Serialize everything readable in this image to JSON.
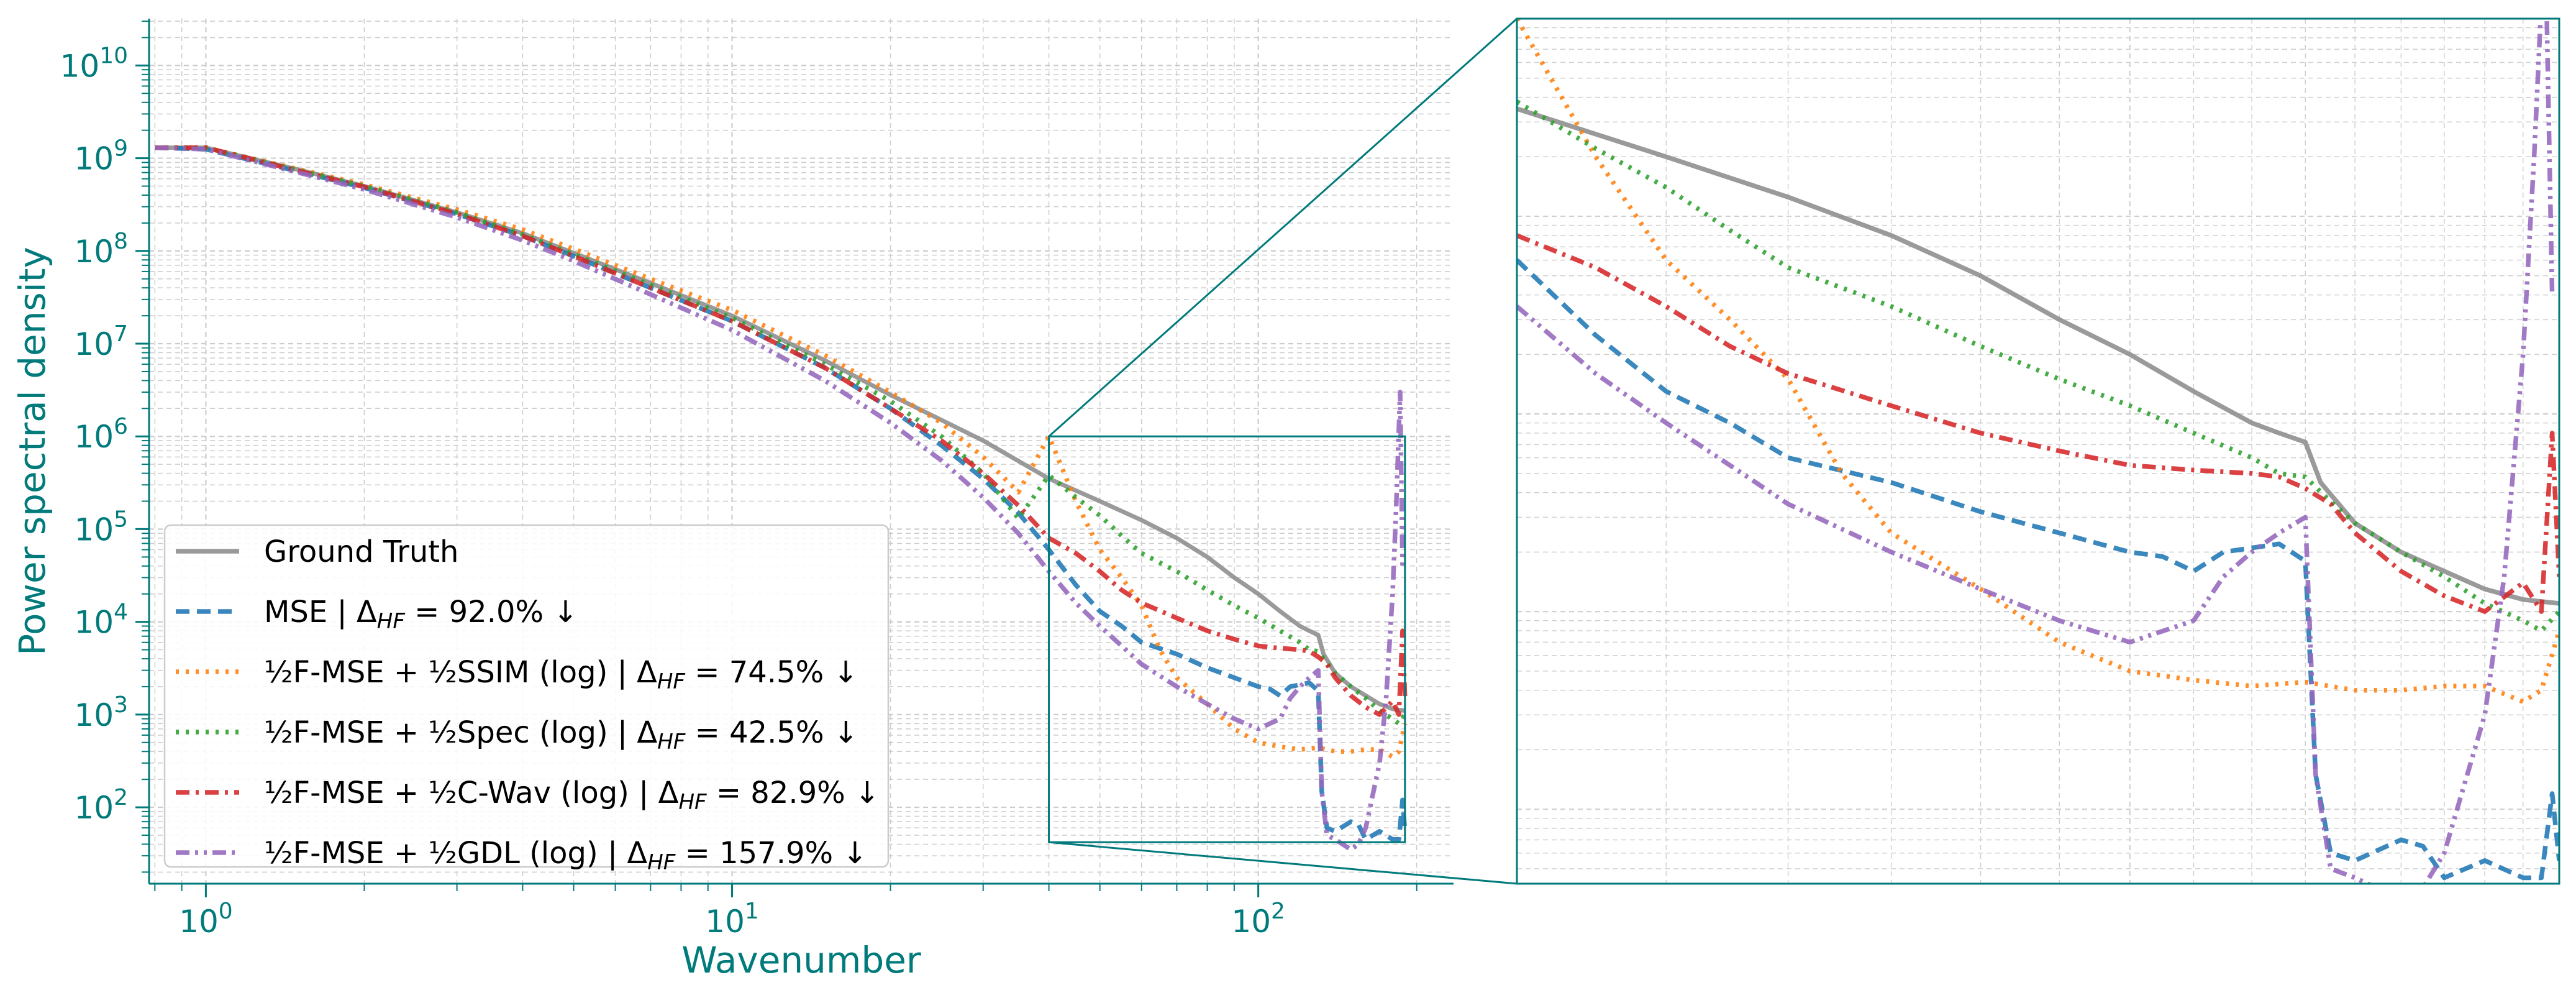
{
  "chart_data": {
    "type": "line",
    "xlabel": "Wavenumber",
    "ylabel": "Power spectral density",
    "xscale": "log",
    "yscale": "log",
    "xlim": [
      0.78,
      235
    ],
    "ylim": [
      15,
      32000000000.0
    ],
    "x_ticks": [
      {
        "value": 1,
        "base": "10",
        "exp": "0"
      },
      {
        "value": 10,
        "base": "10",
        "exp": "1"
      },
      {
        "value": 100,
        "base": "10",
        "exp": "2"
      }
    ],
    "y_ticks": [
      {
        "value": 100,
        "base": "10",
        "exp": "2"
      },
      {
        "value": 1000,
        "base": "10",
        "exp": "3"
      },
      {
        "value": 10000,
        "base": "10",
        "exp": "4"
      },
      {
        "value": 100000,
        "base": "10",
        "exp": "5"
      },
      {
        "value": 1000000,
        "base": "10",
        "exp": "6"
      },
      {
        "value": 10000000,
        "base": "10",
        "exp": "7"
      },
      {
        "value": 100000000,
        "base": "10",
        "exp": "8"
      },
      {
        "value": 1000000000,
        "base": "10",
        "exp": "9"
      },
      {
        "value": 10000000000,
        "base": "10",
        "exp": "10"
      }
    ],
    "grid": true,
    "legend_position": "lower-left",
    "accent_color": "#007a7a",
    "inset": {
      "xlim": [
        40,
        190
      ],
      "ylim": [
        42,
        1000000
      ],
      "position": "right"
    },
    "series": [
      {
        "name": "Ground Truth",
        "delta": "",
        "color": "#8c8c8c",
        "dash": "solid",
        "points": [
          [
            0.8,
            1300000000.0
          ],
          [
            1.0,
            1300000000.0
          ],
          [
            1.5,
            750000000.0
          ],
          [
            2,
            500000000.0
          ],
          [
            3,
            260000000.0
          ],
          [
            4,
            155000000.0
          ],
          [
            5,
            95000000.0
          ],
          [
            7,
            45000000.0
          ],
          [
            10,
            20000000.0
          ],
          [
            15,
            6600000.0
          ],
          [
            20,
            2800000.0
          ],
          [
            30,
            900000.0
          ],
          [
            40,
            350000.0
          ],
          [
            50,
            200000.0
          ],
          [
            60,
            125000.0
          ],
          [
            70,
            80000.0
          ],
          [
            80,
            50000.0
          ],
          [
            90,
            30000.0
          ],
          [
            100,
            20000.0
          ],
          [
            110,
            13000.0
          ],
          [
            120,
            9000.0
          ],
          [
            125,
            8000.0
          ],
          [
            130,
            7200.0
          ],
          [
            133,
            4500.0
          ],
          [
            140,
            2800.0
          ],
          [
            150,
            2000.0
          ],
          [
            160,
            1600.0
          ],
          [
            170,
            1300.0
          ],
          [
            180,
            1150.0
          ],
          [
            190,
            1100.0
          ]
        ]
      },
      {
        "name": "MSE",
        "delta": "92.0%",
        "color": "#1f77b4",
        "dash": "dashed",
        "points": [
          [
            0.8,
            1300000000.0
          ],
          [
            1.0,
            1250000000.0
          ],
          [
            1.5,
            720000000.0
          ],
          [
            2,
            480000000.0
          ],
          [
            3,
            250000000.0
          ],
          [
            4,
            145000000.0
          ],
          [
            5,
            88000000.0
          ],
          [
            7,
            40000000.0
          ],
          [
            10,
            17500000.0
          ],
          [
            15,
            5500000.0
          ],
          [
            20,
            2000000.0
          ],
          [
            25,
            800000.0
          ],
          [
            30,
            350000.0
          ],
          [
            35,
            150000.0
          ],
          [
            40,
            60000.0
          ],
          [
            45,
            25000.0
          ],
          [
            50,
            13000.0
          ],
          [
            55,
            9000.0
          ],
          [
            60,
            6000.0
          ],
          [
            70,
            4500.0
          ],
          [
            80,
            3200.0
          ],
          [
            90,
            2500.0
          ],
          [
            100,
            2000.0
          ],
          [
            105,
            1900.0
          ],
          [
            110,
            1600.0
          ],
          [
            115,
            2000.0
          ],
          [
            125,
            2200.0
          ],
          [
            130,
            1800.0
          ],
          [
            132,
            150
          ],
          [
            135,
            60
          ],
          [
            140,
            55
          ],
          [
            150,
            70
          ],
          [
            155,
            65
          ],
          [
            160,
            45
          ],
          [
            170,
            55
          ],
          [
            180,
            45
          ],
          [
            185,
            45
          ],
          [
            188,
            120
          ],
          [
            190,
            55
          ]
        ]
      },
      {
        "name": "½F-MSE + ½SSIM (log)",
        "delta": "74.5%",
        "color": "#ff7f0e",
        "dash": "dotted",
        "points": [
          [
            0.8,
            1300000000.0
          ],
          [
            1.0,
            1300000000.0
          ],
          [
            1.5,
            760000000.0
          ],
          [
            2,
            520000000.0
          ],
          [
            3,
            280000000.0
          ],
          [
            4,
            170000000.0
          ],
          [
            5,
            105000000.0
          ],
          [
            7,
            50000000.0
          ],
          [
            10,
            23000000.0
          ],
          [
            15,
            7500000.0
          ],
          [
            20,
            3000000.0
          ],
          [
            25,
            1400000.0
          ],
          [
            30,
            600000.0
          ],
          [
            35,
            250000.0
          ],
          [
            40,
            1000000.0
          ],
          [
            45,
            200000.0
          ],
          [
            50,
            60000.0
          ],
          [
            55,
            30000.0
          ],
          [
            60,
            15000.0
          ],
          [
            65,
            5000.0
          ],
          [
            70,
            2500.0
          ],
          [
            80,
            1300.0
          ],
          [
            90,
            700
          ],
          [
            100,
            500
          ],
          [
            110,
            450
          ],
          [
            120,
            420
          ],
          [
            130,
            440
          ],
          [
            140,
            400
          ],
          [
            150,
            400
          ],
          [
            160,
            420
          ],
          [
            170,
            420
          ],
          [
            180,
            350
          ],
          [
            185,
            400
          ],
          [
            190,
            800
          ]
        ]
      },
      {
        "name": "½F-MSE + ½Spec (log)",
        "delta": "42.5%",
        "color": "#2ca02c",
        "dash": "dotted",
        "points": [
          [
            0.8,
            1300000000.0
          ],
          [
            1.0,
            1300000000.0
          ],
          [
            1.5,
            740000000.0
          ],
          [
            2,
            500000000.0
          ],
          [
            3,
            260000000.0
          ],
          [
            4,
            150000000.0
          ],
          [
            5,
            92000000.0
          ],
          [
            7,
            43000000.0
          ],
          [
            10,
            19000000.0
          ],
          [
            15,
            6000000.0
          ],
          [
            20,
            2400000.0
          ],
          [
            25,
            1000000.0
          ],
          [
            30,
            400000.0
          ],
          [
            35,
            130000.0
          ],
          [
            40,
            380000.0
          ],
          [
            45,
            220000.0
          ],
          [
            50,
            140000.0
          ],
          [
            55,
            85000.0
          ],
          [
            60,
            55000.0
          ],
          [
            70,
            35000.0
          ],
          [
            80,
            22000.0
          ],
          [
            90,
            15000.0
          ],
          [
            100,
            11000.0
          ],
          [
            110,
            8000.0
          ],
          [
            120,
            6000.0
          ],
          [
            125,
            5000.0
          ],
          [
            130,
            4800.0
          ],
          [
            135,
            3600.0
          ],
          [
            140,
            2800.0
          ],
          [
            150,
            2000.0
          ],
          [
            160,
            1500.0
          ],
          [
            170,
            1100.0
          ],
          [
            180,
            900
          ],
          [
            185,
            800
          ],
          [
            190,
            1000.0
          ]
        ]
      },
      {
        "name": "½F-MSE + ½C-Wav (log)",
        "delta": "82.9%",
        "color": "#d62728",
        "dash": "dashdot",
        "points": [
          [
            0.8,
            1300000000.0
          ],
          [
            1.0,
            1300000000.0
          ],
          [
            1.5,
            730000000.0
          ],
          [
            2,
            490000000.0
          ],
          [
            3,
            250000000.0
          ],
          [
            4,
            145000000.0
          ],
          [
            5,
            88000000.0
          ],
          [
            7,
            40000000.0
          ],
          [
            10,
            17500000.0
          ],
          [
            15,
            5500000.0
          ],
          [
            20,
            2000000.0
          ],
          [
            25,
            900000.0
          ],
          [
            30,
            400000.0
          ],
          [
            35,
            180000.0
          ],
          [
            40,
            80000.0
          ],
          [
            45,
            55000.0
          ],
          [
            50,
            35000.0
          ],
          [
            55,
            22000.0
          ],
          [
            60,
            16000.0
          ],
          [
            70,
            11000.0
          ],
          [
            80,
            8000.0
          ],
          [
            90,
            6500.0
          ],
          [
            100,
            5500.0
          ],
          [
            110,
            5200.0
          ],
          [
            120,
            5000.0
          ],
          [
            125,
            4800.0
          ],
          [
            130,
            4200.0
          ],
          [
            135,
            3500.0
          ],
          [
            140,
            2500.0
          ],
          [
            150,
            1600.0
          ],
          [
            160,
            1200.0
          ],
          [
            170,
            1000.0
          ],
          [
            180,
            1400.0
          ],
          [
            185,
            1000.0
          ],
          [
            188,
            8000.0
          ],
          [
            190,
            1500.0
          ]
        ]
      },
      {
        "name": "½F-MSE + ½GDL (log)",
        "delta": "157.9%",
        "color": "#9467bd",
        "dash": "dashdotdot",
        "points": [
          [
            0.8,
            1300000000.0
          ],
          [
            1.0,
            1250000000.0
          ],
          [
            1.5,
            700000000.0
          ],
          [
            2,
            460000000.0
          ],
          [
            3,
            230000000.0
          ],
          [
            4,
            130000000.0
          ],
          [
            5,
            78000000.0
          ],
          [
            7,
            34000000.0
          ],
          [
            10,
            14000000.0
          ],
          [
            15,
            4000000.0
          ],
          [
            20,
            1400000.0
          ],
          [
            25,
            550000.0
          ],
          [
            30,
            220000.0
          ],
          [
            35,
            90000.0
          ],
          [
            40,
            35000.0
          ],
          [
            45,
            16000.0
          ],
          [
            50,
            9000.0
          ],
          [
            55,
            5500.0
          ],
          [
            60,
            3500.0
          ],
          [
            70,
            2000.0
          ],
          [
            80,
            1300.0
          ],
          [
            90,
            900
          ],
          [
            100,
            700
          ],
          [
            110,
            900
          ],
          [
            115,
            1500.0
          ],
          [
            120,
            2000.0
          ],
          [
            125,
            2500.0
          ],
          [
            130,
            3000.0
          ],
          [
            132,
            150
          ],
          [
            135,
            50
          ],
          [
            140,
            45
          ],
          [
            150,
            35
          ],
          [
            155,
            40
          ],
          [
            160,
            60
          ],
          [
            170,
            300
          ],
          [
            175,
            1500.0
          ],
          [
            180,
            20000.0
          ],
          [
            183,
            200000.0
          ],
          [
            186,
            3000000.0
          ],
          [
            188,
            40000.0
          ]
        ]
      }
    ]
  }
}
